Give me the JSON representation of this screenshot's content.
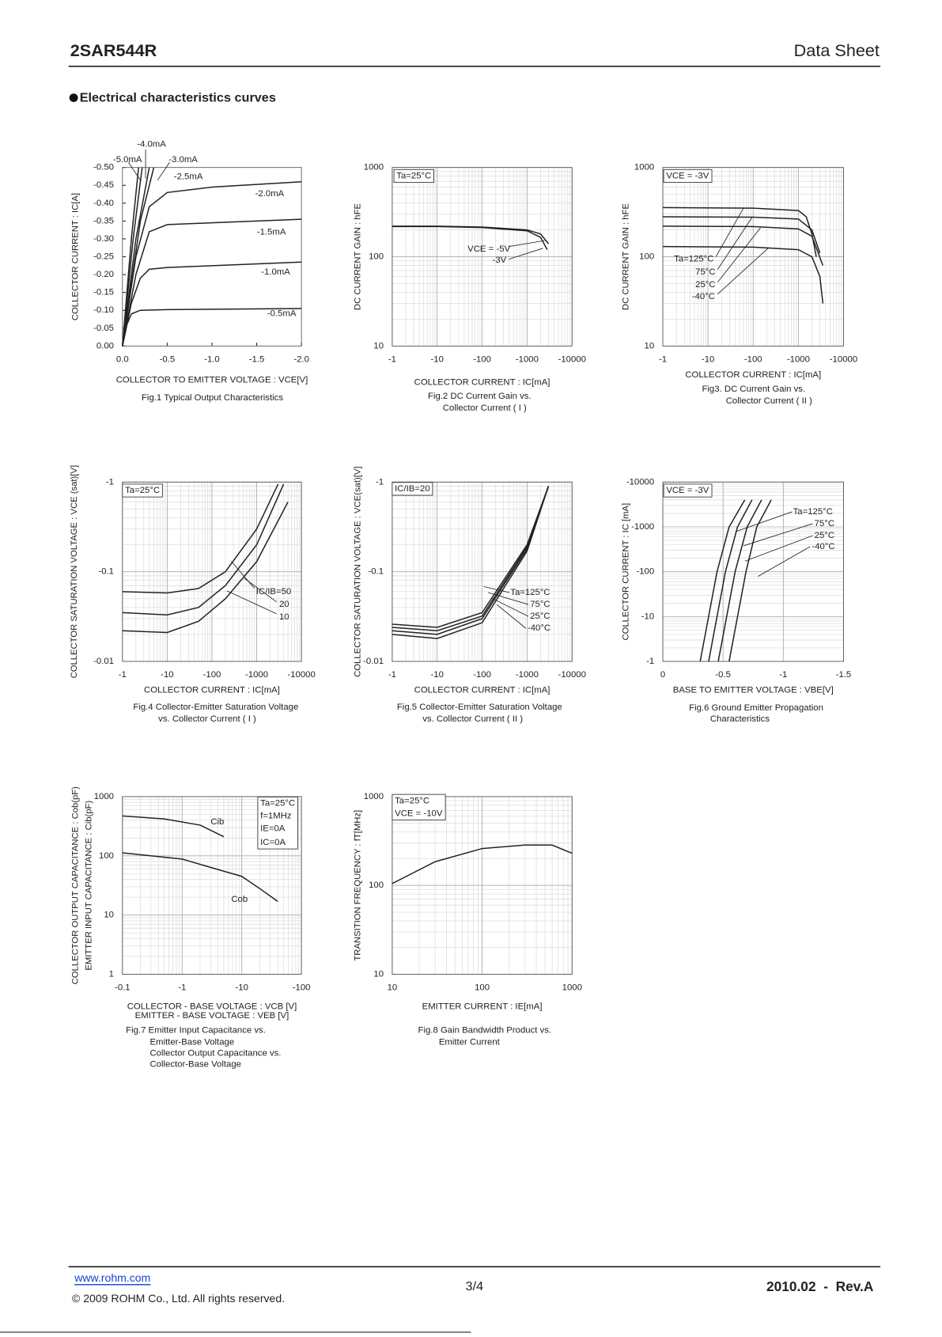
{
  "header": {
    "part": "2SAR544R",
    "doc": "Data Sheet"
  },
  "section_title": "Electrical characteristics curves",
  "chart_data": [
    {
      "type": "line",
      "xscale": "linear",
      "yscale": "linear",
      "grid": false,
      "color": "#222222",
      "xlim": [
        0,
        -2
      ],
      "ylim": [
        0,
        -0.5
      ],
      "xticks": [
        {
          "value": 0,
          "label": "0.0"
        },
        -0.5,
        {
          "value": -1,
          "label": "-1.0"
        },
        -1.5,
        {
          "value": -2,
          "label": "-2.0"
        }
      ],
      "yticks": [
        {
          "value": 0,
          "label": "0.00"
        },
        -0.05,
        {
          "value": -0.1,
          "label": "-0.10"
        },
        -0.15,
        {
          "value": -0.2,
          "label": "-0.20"
        },
        -0.25,
        {
          "value": -0.3,
          "label": "-0.30"
        },
        -0.35,
        {
          "value": -0.4,
          "label": "-0.40"
        },
        -0.45,
        {
          "value": -0.5,
          "label": "-0.50"
        }
      ],
      "xlabel": [
        "COLLECTOR TO EMITTER VOLTAGE : VCE[V]"
      ],
      "ylabel": [
        "COLLECTOR CURRENT : IC[A]"
      ],
      "caption": [
        "Fig.1 Typical Output Characteristics"
      ],
      "annotations": [],
      "series": [
        {
          "name": "-0.5mA",
          "x": [
            0,
            -0.05,
            -0.1,
            -0.2,
            -0.5,
            -2
          ],
          "values": [
            0,
            -0.06,
            -0.09,
            -0.1,
            -0.102,
            -0.105
          ]
        },
        {
          "name": "-1.0mA",
          "x": [
            0,
            -0.1,
            -0.2,
            -0.3,
            -0.5,
            -1,
            -2
          ],
          "values": [
            0,
            -0.12,
            -0.19,
            -0.215,
            -0.22,
            -0.225,
            -0.235
          ]
        },
        {
          "name": "-1.5mA",
          "x": [
            0,
            -0.15,
            -0.3,
            -0.5,
            -1,
            -2
          ],
          "values": [
            0,
            -0.2,
            -0.32,
            -0.34,
            -0.345,
            -0.355
          ]
        },
        {
          "name": "-2.0mA",
          "x": [
            0,
            -0.15,
            -0.3,
            -0.5,
            -1,
            -2
          ],
          "values": [
            0,
            -0.25,
            -0.39,
            -0.43,
            -0.445,
            -0.46
          ]
        },
        {
          "name": "-2.5mA",
          "x": [
            0,
            -0.2,
            -0.35
          ],
          "values": [
            0,
            -0.35,
            -0.5
          ]
        },
        {
          "name": "-3.0mA",
          "x": [
            0,
            -0.15,
            -0.3
          ],
          "values": [
            0,
            -0.3,
            -0.5
          ]
        },
        {
          "name": "-4.0mA",
          "x": [
            0,
            -0.12,
            -0.22
          ],
          "values": [
            0,
            -0.3,
            -0.5
          ]
        },
        {
          "name": "-5.0mA",
          "x": [
            0,
            -0.1,
            -0.18
          ],
          "values": [
            0,
            -0.3,
            -0.5
          ]
        }
      ]
    },
    {
      "type": "line",
      "xscale": "log",
      "yscale": "log",
      "grid": true,
      "color": "#222222",
      "xlim": [
        -1,
        -10000
      ],
      "ylim": [
        10,
        1000
      ],
      "xticks": [
        -1,
        -10,
        -100,
        -1000,
        -10000
      ],
      "yticks": [
        10,
        100,
        1000
      ],
      "xlabel": [
        "COLLECTOR CURRENT : IC[mA]"
      ],
      "ylabel": [
        "DC CURRENT GAIN : hFE"
      ],
      "caption": [
        "Fig.2  DC Current Gain vs.",
        "Collector Current ( I )"
      ],
      "annotations": [
        "Ta=25°C"
      ],
      "series": [
        {
          "name": "VCE = -5V",
          "x": [
            -1,
            -10,
            -100,
            -1000,
            -2000,
            -3000
          ],
          "values": [
            220,
            220,
            215,
            200,
            180,
            140
          ]
        },
        {
          "name": "-3V",
          "x": [
            -1,
            -10,
            -100,
            -1000,
            -2000,
            -2800
          ],
          "values": [
            218,
            218,
            212,
            195,
            165,
            120
          ]
        }
      ]
    },
    {
      "type": "line",
      "xscale": "log",
      "yscale": "log",
      "grid": true,
      "color": "#222222",
      "xlim": [
        -1,
        -10000
      ],
      "ylim": [
        10,
        1000
      ],
      "xticks": [
        -1,
        -10,
        -100,
        -1000,
        -10000
      ],
      "yticks": [
        10,
        100,
        1000
      ],
      "xlabel": [
        "COLLECTOR CURRENT : IC[mA]"
      ],
      "ylabel": [
        "DC CURRENT GAIN : hFE"
      ],
      "caption": [
        "Fig3. DC Current Gain vs.",
        "Collector Current ( II )"
      ],
      "annotations": [
        "VCE = -3V"
      ],
      "series": [
        {
          "name": "Ta=125°C",
          "x": [
            -1,
            -100,
            -1000,
            -1500,
            -2000,
            -2500
          ],
          "values": [
            355,
            350,
            330,
            280,
            180,
            100
          ]
        },
        {
          "name": "75°C",
          "x": [
            -1,
            -100,
            -1000,
            -2000,
            -3000
          ],
          "values": [
            280,
            278,
            265,
            200,
            110
          ]
        },
        {
          "name": "25°C",
          "x": [
            -1,
            -100,
            -1000,
            -2000,
            -3500
          ],
          "values": [
            220,
            218,
            205,
            170,
            80
          ]
        },
        {
          "name": "-40°C",
          "x": [
            -1,
            -100,
            -1000,
            -2000,
            -3000,
            -3500
          ],
          "values": [
            130,
            128,
            120,
            100,
            60,
            30
          ]
        }
      ]
    },
    {
      "type": "line",
      "xscale": "log",
      "yscale": "log",
      "grid": true,
      "color": "#222222",
      "xlim": [
        -1,
        -10000
      ],
      "ylim": [
        -0.01,
        -1
      ],
      "xticks": [
        -1,
        -10,
        -100,
        -1000,
        -10000
      ],
      "yticks": [
        -0.01,
        -0.1,
        -1
      ],
      "xlabel": [
        "COLLECTOR CURRENT : IC[mA]"
      ],
      "ylabel": [
        "COLLECTOR SATURATION VOLTAGE : VCE (sat)[V]"
      ],
      "caption": [
        "Fig.4 Collector-Emitter Saturation Voltage",
        "vs. Collector Current ( I )"
      ],
      "annotations": [
        "Ta=25°C"
      ],
      "series": [
        {
          "name": "IC/IB=50",
          "x": [
            -1,
            -10,
            -50,
            -200,
            -1000,
            -3000
          ],
          "values": [
            -0.06,
            -0.058,
            -0.065,
            -0.1,
            -0.3,
            -0.95
          ]
        },
        {
          "name": "20",
          "x": [
            -1,
            -10,
            -50,
            -200,
            -1000,
            -4000
          ],
          "values": [
            -0.035,
            -0.033,
            -0.04,
            -0.07,
            -0.2,
            -0.95
          ]
        },
        {
          "name": "10",
          "x": [
            -1,
            -10,
            -50,
            -200,
            -1000,
            -5000
          ],
          "values": [
            -0.022,
            -0.021,
            -0.028,
            -0.05,
            -0.13,
            -0.6
          ]
        }
      ]
    },
    {
      "type": "line",
      "xscale": "log",
      "yscale": "log",
      "grid": true,
      "color": "#222222",
      "xlim": [
        -1,
        -10000
      ],
      "ylim": [
        -0.01,
        -1
      ],
      "xticks": [
        -1,
        -10,
        -100,
        -1000,
        -10000
      ],
      "yticks": [
        -0.01,
        -0.1,
        -1
      ],
      "xlabel": [
        "COLLECTOR CURRENT : IC[mA]"
      ],
      "ylabel": [
        "COLLECTOR SATURATION VOLTAGE : VCE(sat)[V]"
      ],
      "caption": [
        "Fig.5 Collector-Emitter Saturation Voltage",
        "vs. Collector Current ( II )"
      ],
      "annotations": [
        "IC/IB=20"
      ],
      "series": [
        {
          "name": "Ta=125°C",
          "x": [
            -1,
            -10,
            -100,
            -1000,
            -3000
          ],
          "values": [
            -0.026,
            -0.024,
            -0.035,
            -0.2,
            -0.9
          ]
        },
        {
          "name": "75°C",
          "x": [
            -1,
            -10,
            -100,
            -1000,
            -3000
          ],
          "values": [
            -0.024,
            -0.022,
            -0.032,
            -0.19,
            -0.9
          ]
        },
        {
          "name": "25°C",
          "x": [
            -1,
            -10,
            -100,
            -1000,
            -3000
          ],
          "values": [
            -0.022,
            -0.02,
            -0.03,
            -0.18,
            -0.9
          ]
        },
        {
          "name": "-40°C",
          "x": [
            -1,
            -10,
            -100,
            -1000,
            -3000
          ],
          "values": [
            -0.02,
            -0.018,
            -0.027,
            -0.17,
            -0.9
          ]
        }
      ]
    },
    {
      "type": "line",
      "xscale": "linear",
      "yscale": "log",
      "grid": true,
      "color": "#222222",
      "xlim": [
        0,
        -1.5
      ],
      "ylim": [
        -1,
        -10000
      ],
      "xticks": [
        0,
        -0.5,
        -1,
        -1.5
      ],
      "yticks": [
        -1,
        -10,
        -100,
        -1000,
        -10000
      ],
      "xlabel": [
        "BASE TO EMITTER VOLTAGE : VBE[V]"
      ],
      "ylabel": [
        "COLLECTOR CURRENT : IC [mA]"
      ],
      "caption": [
        "Fig.6 Ground Emitter Propagation",
        "Characteristics"
      ],
      "annotations": [
        "VCE = -3V"
      ],
      "series": [
        {
          "name": "Ta=125°C",
          "x": [
            -0.31,
            -0.45,
            -0.55,
            -0.68
          ],
          "values": [
            -1,
            -100,
            -1000,
            -4000
          ]
        },
        {
          "name": "75°C",
          "x": [
            -0.38,
            -0.52,
            -0.62,
            -0.74
          ],
          "values": [
            -1,
            -100,
            -1000,
            -4000
          ]
        },
        {
          "name": "25°C",
          "x": [
            -0.46,
            -0.6,
            -0.7,
            -0.82
          ],
          "values": [
            -1,
            -100,
            -1000,
            -4000
          ]
        },
        {
          "name": "-40°C",
          "x": [
            -0.55,
            -0.69,
            -0.78,
            -0.9
          ],
          "values": [
            -1,
            -100,
            -1000,
            -4000
          ]
        }
      ]
    },
    {
      "type": "line",
      "xscale": "log",
      "yscale": "log",
      "grid": true,
      "color": "#222222",
      "xlim": [
        -0.1,
        -100
      ],
      "ylim": [
        1,
        1000
      ],
      "xticks": [
        -0.1,
        -1,
        -10,
        -100
      ],
      "yticks": [
        1,
        10,
        100,
        1000
      ],
      "xlabel": [
        "COLLECTOR - BASE VOLTAGE  : VCB [V]",
        "EMITTER - BASE VOLTAGE : VEB [V]"
      ],
      "ylabel": [
        "COLLECTOR  OUTPUT CAPACITANCE : Cob(pF)",
        "EMITTER INPUT CAPACITANCE : Cib(pF)"
      ],
      "caption": [
        "Fig.7 Emitter Input Capacitance vs.",
        "Emitter-Base Voltage",
        "Collector Output Capacitance vs.",
        "Collector-Base Voltage"
      ],
      "annotations": [
        "Ta=25°C",
        "f=1MHz",
        "IE=0A",
        "IC=0A"
      ],
      "series": [
        {
          "name": "Cib",
          "x": [
            -0.1,
            -0.5,
            -2,
            -5
          ],
          "values": [
            470,
            420,
            330,
            210
          ]
        },
        {
          "name": "Cob",
          "x": [
            -0.1,
            -1,
            -5,
            -10,
            -20,
            -40
          ],
          "values": [
            112,
            88,
            55,
            45,
            28,
            17
          ]
        }
      ]
    },
    {
      "type": "line",
      "xscale": "log",
      "yscale": "log",
      "grid": true,
      "color": "#222222",
      "xlim": [
        10,
        1000
      ],
      "ylim": [
        10,
        1000
      ],
      "xticks": [
        10,
        100,
        1000
      ],
      "yticks": [
        10,
        100,
        1000
      ],
      "xlabel": [
        "EMITTER CURRENT : IE[mA]"
      ],
      "ylabel": [
        "TRANSITION FREQUENCY : fT[MHz]"
      ],
      "caption": [
        "Fig.8 Gain Bandwidth Product vs.",
        "Emitter Current"
      ],
      "annotations": [
        "Ta=25°C",
        "VCE = -10V"
      ],
      "series": [
        {
          "x": [
            10,
            30,
            100,
            300,
            600,
            1000
          ],
          "values": [
            105,
            185,
            260,
            285,
            285,
            230
          ]
        }
      ]
    }
  ],
  "footer": {
    "url": "www.rohm.com",
    "copyright": "©  2009 ROHM Co., Ltd. All rights reserved.",
    "page": "3/4",
    "rev": "2010.02  -  Rev.A"
  }
}
